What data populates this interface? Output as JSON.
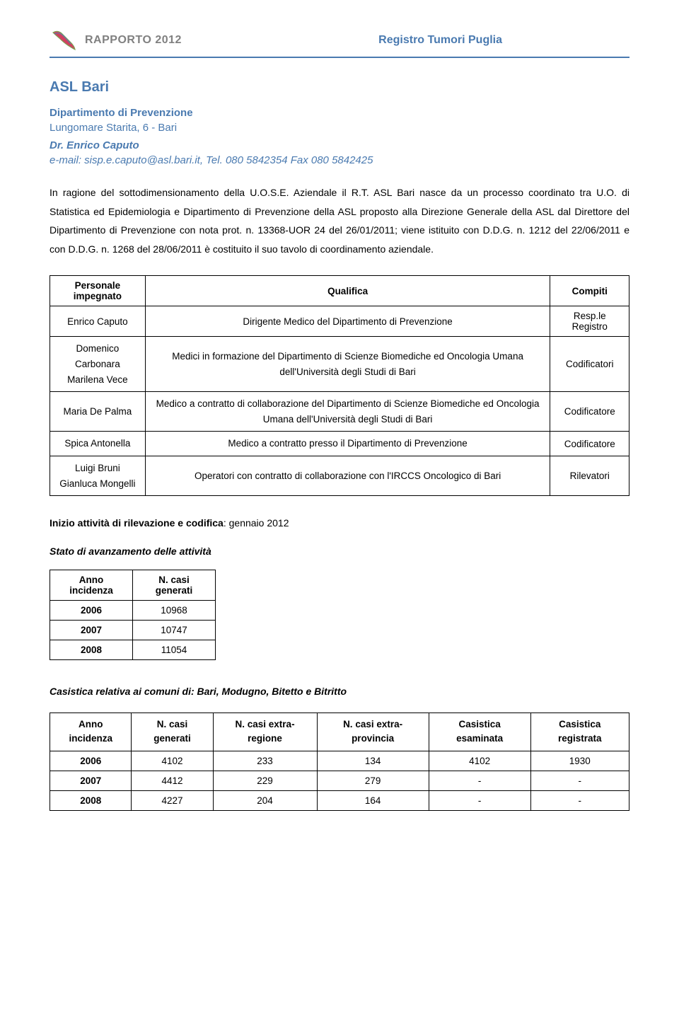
{
  "header": {
    "rapport": "RAPPORTO 2012",
    "registry_title": "Registro Tumori Puglia"
  },
  "colors": {
    "accent": "#4a7ab0",
    "header_gray": "#808080",
    "border": "#000000",
    "background": "#ffffff"
  },
  "org": {
    "title": "ASL Bari",
    "department": "Dipartimento di Prevenzione",
    "address": "Lungomare Starita, 6 - Bari",
    "director": "Dr. Enrico Caputo",
    "contact": "e-mail: sisp.e.caputo@asl.bari.it, Tel. 080 5842354 Fax 080 5842425"
  },
  "body_paragraph": "In ragione del sottodimensionamento della U.O.S.E. Aziendale il R.T. ASL Bari nasce da un processo coordinato tra U.O. di Statistica ed Epidemiologia e Dipartimento di Prevenzione della ASL proposto alla Direzione Generale della ASL dal Direttore del Dipartimento di Prevenzione con nota prot. n. 13368-UOR 24 del 26/01/2011; viene istituito con D.D.G. n. 1212 del 22/06/2011 e con D.D.G. n. 1268 del 28/06/2011 è costituito il suo tavolo di coordinamento aziendale.",
  "main_table": {
    "headers": [
      "Personale impegnato",
      "Qualifica",
      "Compiti"
    ],
    "rows": [
      {
        "name": "Enrico Caputo",
        "qual": "Dirigente Medico del Dipartimento di Prevenzione",
        "role": "Resp.le Registro"
      },
      {
        "name": "Domenico Carbonara\nMarilena Vece",
        "qual": "Medici in formazione del Dipartimento di Scienze Biomediche ed Oncologia Umana dell'Università degli Studi di Bari",
        "role": "Codificatori"
      },
      {
        "name": "Maria De Palma",
        "qual": "Medico a contratto di collaborazione del Dipartimento di  Scienze Biomediche ed Oncologia Umana dell'Università degli Studi di Bari",
        "role": "Codificatore"
      },
      {
        "name": "Spica Antonella",
        "qual": "Medico a contratto presso il Dipartimento di Prevenzione",
        "role": "Codificatore"
      },
      {
        "name": "Luigi Bruni\nGianluca Mongelli",
        "qual": "Operatori con contratto di collaborazione con l'IRCCS Oncologico di Bari",
        "role": "Rilevatori"
      }
    ]
  },
  "inizio": {
    "label": "Inizio attività di rilevazione e codifica",
    "value": ": gennaio 2012"
  },
  "stato_heading": "Stato di avanzamento delle attività",
  "small_table": {
    "headers": [
      "Anno incidenza",
      "N. casi generati"
    ],
    "rows": [
      {
        "y": "2006",
        "v": "10968"
      },
      {
        "y": "2007",
        "v": "10747"
      },
      {
        "y": "2008",
        "v": "11054"
      }
    ]
  },
  "casistica_heading": "Casistica relativa ai comuni di: Bari, Modugno, Bitetto e Bitritto",
  "cas_table": {
    "headers": [
      "Anno incidenza",
      "N. casi generati",
      "N. casi extra-regione",
      "N. casi extra-provincia",
      "Casistica esaminata",
      "Casistica registrata"
    ],
    "rows": [
      {
        "c0": "2006",
        "c1": "4102",
        "c2": "233",
        "c3": "134",
        "c4": "4102",
        "c5": "1930"
      },
      {
        "c0": "2007",
        "c1": "4412",
        "c2": "229",
        "c3": "279",
        "c4": "-",
        "c5": "-"
      },
      {
        "c0": "2008",
        "c1": "4227",
        "c2": "204",
        "c3": "164",
        "c4": "-",
        "c5": "-"
      }
    ]
  }
}
